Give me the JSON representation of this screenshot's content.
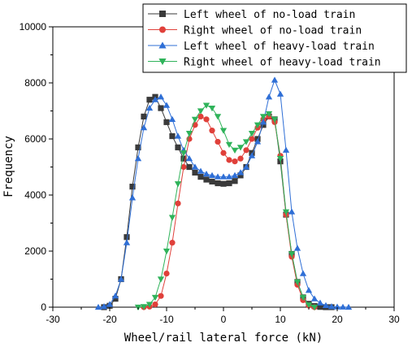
{
  "chart_data": {
    "type": "line",
    "xlabel": "Wheel/rail lateral force (kN)",
    "ylabel": "Frequency",
    "xlim": [
      -30,
      30
    ],
    "ylim": [
      0,
      10000
    ],
    "x_ticks": [
      "-30",
      "-20",
      "-10",
      "0",
      "10",
      "20",
      "30"
    ],
    "y_ticks": [
      "0",
      "2000",
      "4000",
      "6000",
      "8000",
      "10000"
    ],
    "legend_position": "top-right",
    "series": [
      {
        "name": "Left wheel of no-load train",
        "color": "#3a3a3a",
        "marker": "square",
        "x": [
          -21,
          -20,
          -19,
          -18,
          -17,
          -16,
          -15,
          -14,
          -13,
          -12,
          -11,
          -10,
          -9,
          -8,
          -7,
          -6,
          -5,
          -4,
          -3,
          -2,
          -1,
          0,
          1,
          2,
          3,
          4,
          5,
          6,
          7,
          8,
          9,
          10,
          11,
          12,
          13,
          14,
          15,
          16,
          17,
          18,
          19
        ],
        "y": [
          0,
          50,
          300,
          1000,
          2500,
          4300,
          5700,
          6800,
          7400,
          7500,
          7100,
          6600,
          6100,
          5700,
          5300,
          5000,
          4800,
          4650,
          4550,
          4480,
          4420,
          4400,
          4420,
          4500,
          4700,
          5000,
          5500,
          6000,
          6500,
          6800,
          6700,
          5200,
          3300,
          1900,
          900,
          350,
          120,
          40,
          10,
          0,
          0
        ]
      },
      {
        "name": "Right wheel of no-load train",
        "color": "#e0403a",
        "marker": "circle",
        "x": [
          -14,
          -13,
          -12,
          -11,
          -10,
          -9,
          -8,
          -7,
          -6,
          -5,
          -4,
          -3,
          -2,
          -1,
          0,
          1,
          2,
          3,
          4,
          5,
          6,
          7,
          8,
          9,
          10,
          11,
          12,
          13,
          14,
          15,
          16
        ],
        "y": [
          0,
          20,
          100,
          400,
          1200,
          2300,
          3700,
          5000,
          6000,
          6500,
          6800,
          6700,
          6300,
          5900,
          5500,
          5250,
          5200,
          5300,
          5600,
          6000,
          6400,
          6700,
          6800,
          6600,
          5400,
          3300,
          1800,
          800,
          250,
          60,
          0
        ]
      },
      {
        "name": "Left wheel of heavy-load train",
        "color": "#2f6fd6",
        "marker": "triangle-up",
        "x": [
          -22,
          -21,
          -20,
          -19,
          -18,
          -17,
          -16,
          -15,
          -14,
          -13,
          -12,
          -11,
          -10,
          -9,
          -8,
          -7,
          -6,
          -5,
          -4,
          -3,
          -2,
          -1,
          0,
          1,
          2,
          3,
          4,
          5,
          6,
          7,
          8,
          9,
          10,
          11,
          12,
          13,
          14,
          15,
          16,
          17,
          18,
          19,
          20,
          21,
          22
        ],
        "y": [
          0,
          20,
          100,
          400,
          1000,
          2300,
          3900,
          5300,
          6400,
          7100,
          7400,
          7500,
          7200,
          6700,
          6100,
          5600,
          5300,
          5000,
          4850,
          4750,
          4700,
          4650,
          4650,
          4650,
          4700,
          4800,
          5000,
          5400,
          5900,
          6600,
          7500,
          8100,
          7600,
          5600,
          3400,
          2100,
          1200,
          600,
          300,
          150,
          60,
          20,
          10,
          5,
          0
        ]
      },
      {
        "name": "Right wheel of heavy-load train",
        "color": "#2fb35a",
        "marker": "triangle-down",
        "x": [
          -15,
          -14,
          -13,
          -12,
          -11,
          -10,
          -9,
          -8,
          -7,
          -6,
          -5,
          -4,
          -3,
          -2,
          -1,
          0,
          1,
          2,
          3,
          4,
          5,
          6,
          7,
          8,
          9,
          10,
          11,
          12,
          13,
          14,
          15,
          16
        ],
        "y": [
          0,
          20,
          100,
          350,
          1000,
          2000,
          3200,
          4400,
          5500,
          6200,
          6700,
          7000,
          7200,
          7100,
          6800,
          6300,
          5800,
          5600,
          5700,
          5900,
          6200,
          6500,
          6800,
          6900,
          6700,
          5300,
          3400,
          1900,
          900,
          350,
          80,
          0
        ]
      }
    ]
  }
}
